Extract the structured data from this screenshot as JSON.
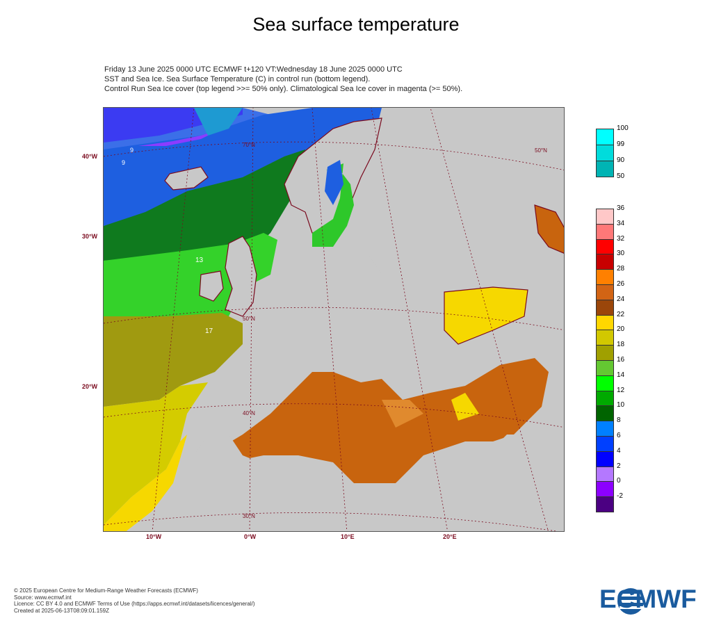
{
  "title": "Sea surface temperature",
  "header": {
    "line1": "Friday 13 June 2025 0000 UTC  ECMWF  t+120  VT:Wednesday 18 June 2025 0000 UTC",
    "line2": "SST and Sea Ice. Sea Surface Temperature (C) in control run (bottom legend).",
    "line3": "Control Run Sea Ice cover (top legend >>= 50% only). Climatological Sea Ice cover in magenta (>= 50%)."
  },
  "map": {
    "lat_labels": [
      "40°W",
      "30°W",
      "20°W"
    ],
    "lon_labels": [
      "10°W",
      "0°W",
      "10°E",
      "20°E"
    ],
    "grid_labels": [
      "70°N",
      "50°N",
      "50°N",
      "40°N",
      "30°N"
    ],
    "contour_labels": [
      "9",
      "9",
      "13",
      "17"
    ]
  },
  "ice_legend": {
    "ticks": [
      "100",
      "99",
      "90",
      "50"
    ],
    "colors": [
      "#00ffff",
      "#00dcdc",
      "#00b4b4"
    ]
  },
  "sst_legend": {
    "ticks": [
      "36",
      "34",
      "32",
      "30",
      "28",
      "26",
      "24",
      "22",
      "20",
      "18",
      "16",
      "14",
      "12",
      "10",
      "8",
      "6",
      "4",
      "2",
      "0",
      "-2"
    ],
    "colors": [
      "#ffc8c8",
      "#ff7878",
      "#ff0000",
      "#c80000",
      "#ff8000",
      "#d26414",
      "#9b460a",
      "#ffd700",
      "#d2c800",
      "#a0a000",
      "#64c832",
      "#00ff00",
      "#00aa00",
      "#006400",
      "#0080ff",
      "#0040ff",
      "#0000ff",
      "#b478ff",
      "#8c00ff",
      "#4b0082"
    ]
  },
  "footer": {
    "line1": "© 2025 European Centre for Medium-Range Weather Forecasts (ECMWF)",
    "line2": "Source: www.ecmwf.int",
    "line3": "Licence: CC BY 4.0 and ECMWF Terms of Use (https://apps.ecmwf.int/datasets/licences/general/)",
    "line4": "Created at 2025-06-13T08:09:01.159Z"
  },
  "logo": {
    "text": "ECMWF",
    "color": "#1a5b9e"
  }
}
